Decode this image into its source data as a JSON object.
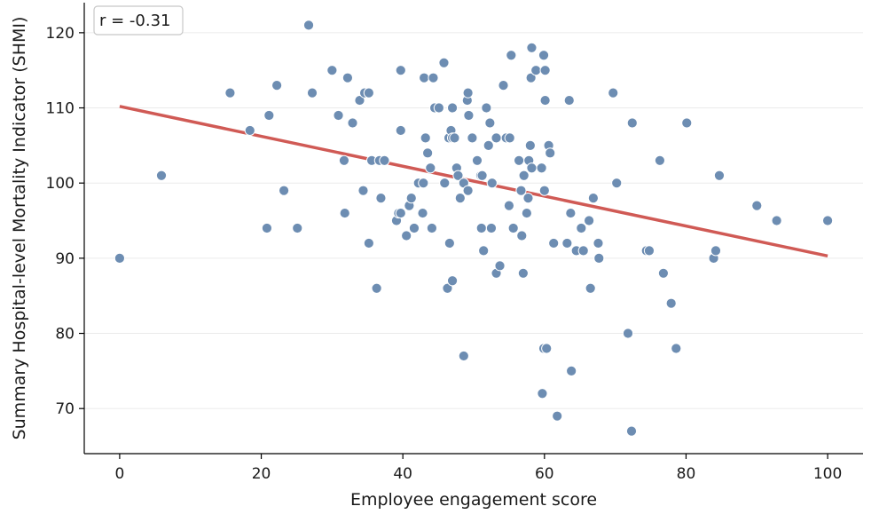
{
  "chart_data": {
    "type": "scatter",
    "title": "",
    "xlabel": "Employee engagement score",
    "ylabel": "Summary Hospital-level Mortality Indicator (SHMI)",
    "xlim": [
      -5,
      105
    ],
    "ylim": [
      64,
      124
    ],
    "xticks": [
      0,
      20,
      40,
      60,
      80,
      100
    ],
    "yticks": [
      70,
      80,
      90,
      100,
      110,
      120
    ],
    "grid": "horizontal",
    "annotation": "r = -0.31",
    "colors": {
      "points": "#6d8db2",
      "point_edge": "#ffffff",
      "trend": "#d05a55",
      "grid": "#ebebeb"
    },
    "trend_line": {
      "x": [
        0,
        100
      ],
      "y": [
        110.2,
        90.3
      ]
    },
    "points": [
      [
        0,
        90
      ],
      [
        5.9,
        101
      ],
      [
        15.6,
        112
      ],
      [
        18.4,
        107
      ],
      [
        20.8,
        94
      ],
      [
        21.1,
        109
      ],
      [
        22.2,
        113
      ],
      [
        23.2,
        99
      ],
      [
        25.1,
        94
      ],
      [
        26.7,
        121
      ],
      [
        27.2,
        112
      ],
      [
        30,
        115
      ],
      [
        30.9,
        109
      ],
      [
        31.7,
        103
      ],
      [
        31.8,
        96
      ],
      [
        32.2,
        114
      ],
      [
        32.9,
        108
      ],
      [
        33.9,
        111
      ],
      [
        34.4,
        99
      ],
      [
        34.6,
        112
      ],
      [
        35.2,
        112
      ],
      [
        35.2,
        92
      ],
      [
        35.6,
        103
      ],
      [
        36.3,
        86
      ],
      [
        36.7,
        103
      ],
      [
        36.9,
        98
      ],
      [
        37.4,
        103
      ],
      [
        39.1,
        95
      ],
      [
        39.4,
        96
      ],
      [
        39.7,
        96
      ],
      [
        39.7,
        115
      ],
      [
        39.7,
        107
      ],
      [
        40.5,
        93
      ],
      [
        40.9,
        97
      ],
      [
        41.2,
        98
      ],
      [
        41.6,
        94
      ],
      [
        42.2,
        100
      ],
      [
        42.8,
        96
      ],
      [
        42.9,
        100
      ],
      [
        43,
        114
      ],
      [
        43.1,
        106
      ],
      [
        43.2,
        106
      ],
      [
        43.5,
        104
      ],
      [
        43.9,
        102
      ],
      [
        44.1,
        94
      ],
      [
        44.3,
        114
      ],
      [
        44.5,
        110
      ],
      [
        45.1,
        110
      ],
      [
        45.8,
        116
      ],
      [
        45.9,
        100
      ],
      [
        46.3,
        86
      ],
      [
        46.5,
        106
      ],
      [
        46.6,
        92
      ],
      [
        46.8,
        107
      ],
      [
        47,
        106
      ],
      [
        47,
        87
      ],
      [
        47,
        110
      ],
      [
        47.3,
        106
      ],
      [
        47.6,
        102
      ],
      [
        47.8,
        101
      ],
      [
        48.1,
        98
      ],
      [
        48.6,
        100
      ],
      [
        48.6,
        77
      ],
      [
        49.1,
        111
      ],
      [
        49.2,
        112
      ],
      [
        49.2,
        99
      ],
      [
        49.3,
        109
      ],
      [
        49.8,
        106
      ],
      [
        50.5,
        103
      ],
      [
        51,
        101
      ],
      [
        51.1,
        94
      ],
      [
        51.2,
        101
      ],
      [
        51.4,
        91
      ],
      [
        51.8,
        110
      ],
      [
        52.1,
        105
      ],
      [
        52.3,
        108
      ],
      [
        52.5,
        94
      ],
      [
        52.6,
        100
      ],
      [
        53.2,
        88
      ],
      [
        53.2,
        106
      ],
      [
        53.7,
        89
      ],
      [
        54.2,
        113
      ],
      [
        54.6,
        106
      ],
      [
        55,
        97
      ],
      [
        55.1,
        106
      ],
      [
        55.3,
        117
      ],
      [
        55.6,
        94
      ],
      [
        56.4,
        103
      ],
      [
        56.7,
        99
      ],
      [
        56.8,
        93
      ],
      [
        57,
        88
      ],
      [
        57.1,
        101
      ],
      [
        57.5,
        96
      ],
      [
        57.7,
        98
      ],
      [
        57.8,
        103
      ],
      [
        58,
        105
      ],
      [
        58.1,
        114
      ],
      [
        58.2,
        118
      ],
      [
        58.2,
        102
      ],
      [
        58.8,
        115
      ],
      [
        59.6,
        102
      ],
      [
        59.7,
        72
      ],
      [
        59.9,
        78
      ],
      [
        59.9,
        117
      ],
      [
        60,
        99
      ],
      [
        60.1,
        115
      ],
      [
        60.1,
        111
      ],
      [
        60.3,
        78
      ],
      [
        60.6,
        105
      ],
      [
        60.8,
        104
      ],
      [
        61.3,
        92
      ],
      [
        61.8,
        69
      ],
      [
        63.2,
        92
      ],
      [
        63.5,
        111
      ],
      [
        63.7,
        96
      ],
      [
        63.8,
        75
      ],
      [
        64.5,
        91
      ],
      [
        65.2,
        94
      ],
      [
        65.5,
        91
      ],
      [
        66.3,
        95
      ],
      [
        66.5,
        86
      ],
      [
        66.9,
        98
      ],
      [
        67.6,
        92
      ],
      [
        67.7,
        90
      ],
      [
        69.7,
        112
      ],
      [
        70.2,
        100
      ],
      [
        71.8,
        80
      ],
      [
        72.3,
        67
      ],
      [
        72.4,
        108
      ],
      [
        74.4,
        91
      ],
      [
        74.8,
        91
      ],
      [
        76.3,
        103
      ],
      [
        76.8,
        88
      ],
      [
        77.9,
        84
      ],
      [
        78.6,
        78
      ],
      [
        80.1,
        108
      ],
      [
        83.9,
        90
      ],
      [
        84.2,
        91
      ],
      [
        84.7,
        101
      ],
      [
        90,
        97
      ],
      [
        92.8,
        95
      ],
      [
        100,
        95
      ]
    ]
  }
}
